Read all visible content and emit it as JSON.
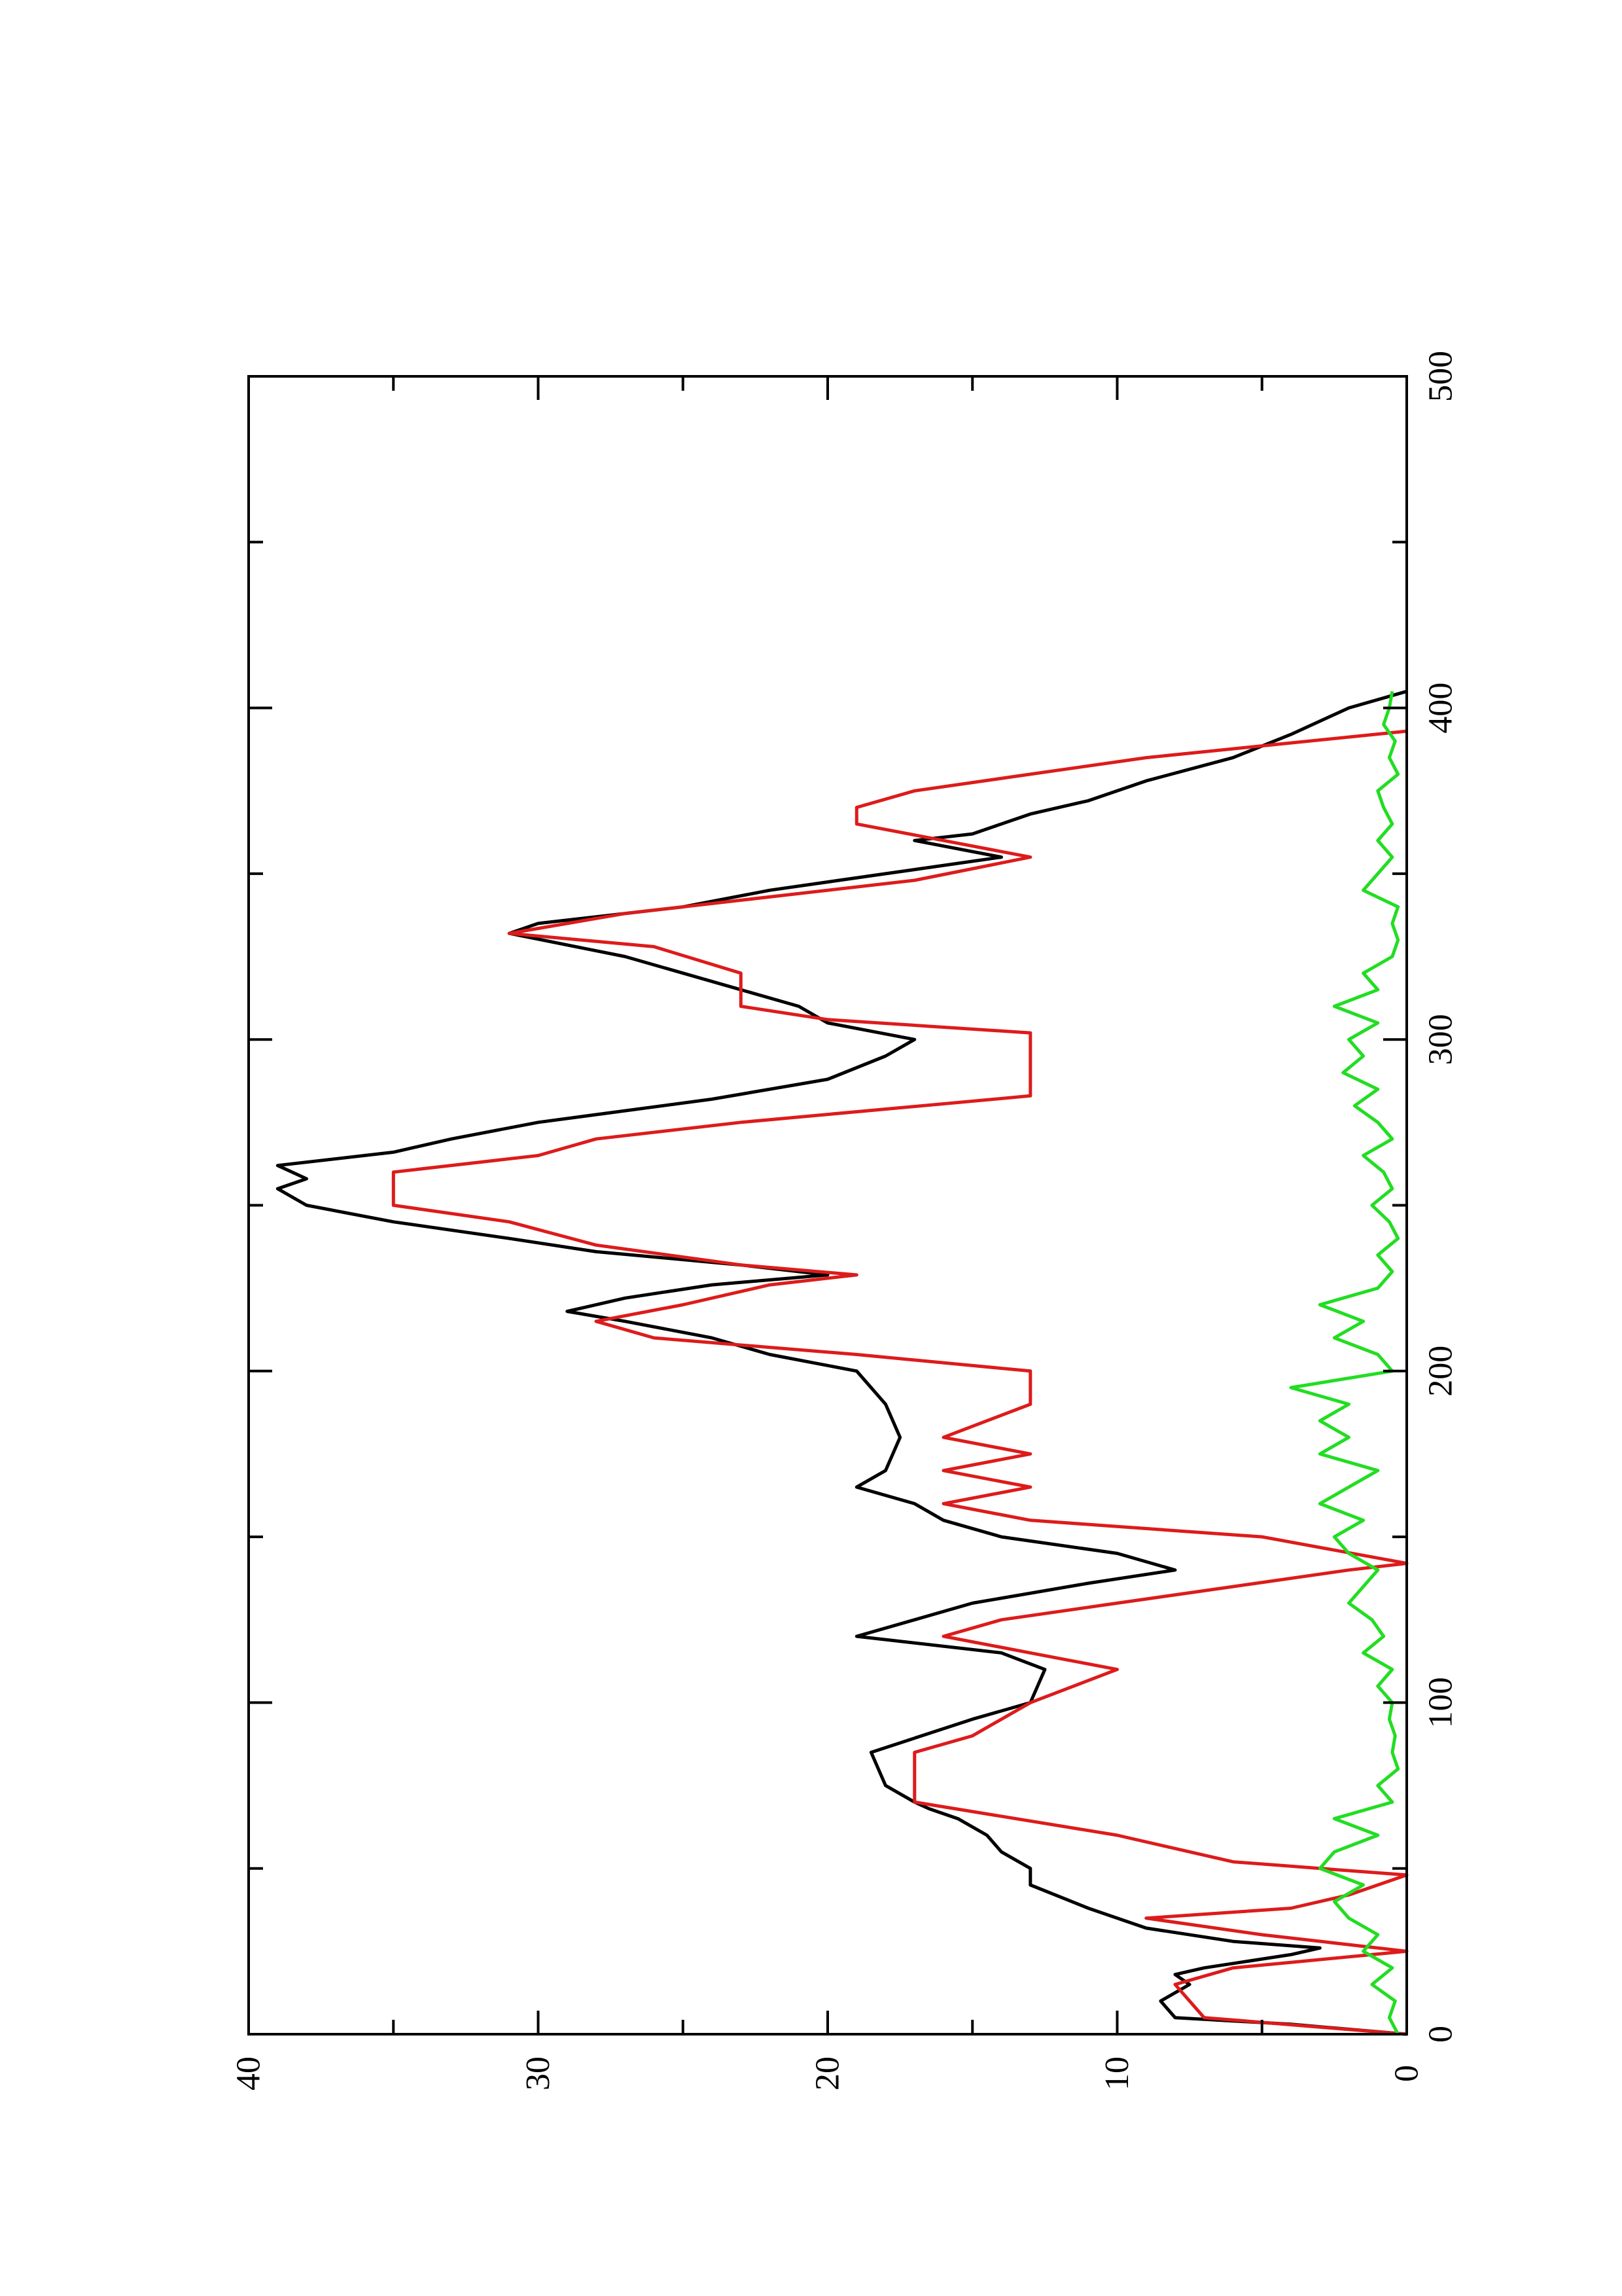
{
  "chart_data": {
    "type": "line",
    "orientation": "rotated-90-ccw",
    "title": "",
    "xlabel": "",
    "ylabel": "",
    "xlim": [
      0,
      500
    ],
    "ylim": [
      0,
      40
    ],
    "x_ticks": [
      "0",
      "100",
      "200",
      "300",
      "400",
      "500"
    ],
    "y_ticks": [
      "0",
      "10",
      "20",
      "30",
      "40"
    ],
    "grid": false,
    "legend": "none",
    "series": [
      {
        "color": "#000000",
        "points": [
          [
            0,
            0
          ],
          [
            3,
            4
          ],
          [
            5,
            8
          ],
          [
            10,
            8.5
          ],
          [
            15,
            7.5
          ],
          [
            18,
            8
          ],
          [
            20,
            7
          ],
          [
            24,
            4
          ],
          [
            26,
            3
          ],
          [
            28,
            6
          ],
          [
            32,
            9
          ],
          [
            38,
            11
          ],
          [
            45,
            13
          ],
          [
            50,
            13
          ],
          [
            55,
            14
          ],
          [
            60,
            14.5
          ],
          [
            65,
            15.5
          ],
          [
            68,
            16.5
          ],
          [
            70,
            17
          ],
          [
            75,
            18
          ],
          [
            85,
            18.5
          ],
          [
            95,
            15
          ],
          [
            100,
            13
          ],
          [
            110,
            12.5
          ],
          [
            115,
            14
          ],
          [
            120,
            19
          ],
          [
            125,
            17
          ],
          [
            130,
            15
          ],
          [
            136,
            11
          ],
          [
            140,
            8
          ],
          [
            145,
            10
          ],
          [
            150,
            14
          ],
          [
            155,
            16
          ],
          [
            160,
            17
          ],
          [
            165,
            19
          ],
          [
            170,
            18
          ],
          [
            180,
            17.5
          ],
          [
            190,
            18
          ],
          [
            200,
            19
          ],
          [
            205,
            22
          ],
          [
            210,
            24
          ],
          [
            215,
            27
          ],
          [
            218,
            29
          ],
          [
            222,
            27
          ],
          [
            226,
            24
          ],
          [
            229,
            20
          ],
          [
            232,
            23
          ],
          [
            236,
            28
          ],
          [
            240,
            31
          ],
          [
            245,
            35
          ],
          [
            250,
            38
          ],
          [
            255,
            39
          ],
          [
            258,
            38
          ],
          [
            262,
            39
          ],
          [
            266,
            35
          ],
          [
            270,
            33
          ],
          [
            275,
            30
          ],
          [
            282,
            24
          ],
          [
            288,
            20
          ],
          [
            295,
            18
          ],
          [
            300,
            17
          ],
          [
            305,
            20
          ],
          [
            310,
            21
          ],
          [
            315,
            23
          ],
          [
            325,
            27
          ],
          [
            332,
            31
          ],
          [
            335,
            30
          ],
          [
            340,
            25
          ],
          [
            345,
            22
          ],
          [
            350,
            18
          ],
          [
            355,
            14
          ],
          [
            360,
            17
          ],
          [
            362,
            15
          ],
          [
            368,
            13
          ],
          [
            372,
            11
          ],
          [
            378,
            9
          ],
          [
            385,
            6
          ],
          [
            392,
            4
          ],
          [
            400,
            2
          ],
          [
            405,
            0
          ]
        ]
      },
      {
        "color": "#dd1b1b",
        "points": [
          [
            0,
            0
          ],
          [
            5,
            7
          ],
          [
            15,
            8
          ],
          [
            20,
            6
          ],
          [
            25,
            0
          ],
          [
            30,
            5
          ],
          [
            35,
            9
          ],
          [
            38,
            4
          ],
          [
            42,
            2
          ],
          [
            48,
            0
          ],
          [
            52,
            6
          ],
          [
            60,
            10
          ],
          [
            70,
            17
          ],
          [
            85,
            17
          ],
          [
            90,
            15
          ],
          [
            100,
            13
          ],
          [
            110,
            10
          ],
          [
            115,
            13
          ],
          [
            120,
            16
          ],
          [
            125,
            14
          ],
          [
            130,
            10
          ],
          [
            135,
            6
          ],
          [
            140,
            2
          ],
          [
            142,
            0
          ],
          [
            150,
            5
          ],
          [
            155,
            13
          ],
          [
            160,
            16
          ],
          [
            165,
            13
          ],
          [
            170,
            16
          ],
          [
            175,
            13
          ],
          [
            180,
            16
          ],
          [
            190,
            13
          ],
          [
            200,
            13
          ],
          [
            205,
            19
          ],
          [
            210,
            26
          ],
          [
            215,
            28
          ],
          [
            220,
            25
          ],
          [
            226,
            22
          ],
          [
            229,
            19
          ],
          [
            232,
            23
          ],
          [
            238,
            28
          ],
          [
            245,
            31
          ],
          [
            250,
            35
          ],
          [
            260,
            35
          ],
          [
            265,
            30
          ],
          [
            270,
            28
          ],
          [
            275,
            23
          ],
          [
            283,
            13
          ],
          [
            302,
            13
          ],
          [
            306,
            20
          ],
          [
            310,
            23
          ],
          [
            320,
            23
          ],
          [
            328,
            26
          ],
          [
            332,
            31
          ],
          [
            338,
            27
          ],
          [
            342,
            23
          ],
          [
            348,
            17
          ],
          [
            355,
            13
          ],
          [
            360,
            16
          ],
          [
            365,
            19
          ],
          [
            370,
            19
          ],
          [
            375,
            17
          ],
          [
            380,
            13
          ],
          [
            385,
            9
          ],
          [
            393,
            0
          ]
        ]
      },
      {
        "color": "#22dd22",
        "points": [
          [
            0,
            0.3
          ],
          [
            5,
            0.6
          ],
          [
            10,
            0.4
          ],
          [
            15,
            1.2
          ],
          [
            20,
            0.5
          ],
          [
            25,
            1.5
          ],
          [
            30,
            1
          ],
          [
            35,
            2
          ],
          [
            40,
            2.5
          ],
          [
            45,
            1.5
          ],
          [
            50,
            3
          ],
          [
            55,
            2.5
          ],
          [
            60,
            1
          ],
          [
            65,
            2.5
          ],
          [
            70,
            0.5
          ],
          [
            75,
            1
          ],
          [
            80,
            0.3
          ],
          [
            85,
            0.5
          ],
          [
            90,
            0.4
          ],
          [
            95,
            0.6
          ],
          [
            100,
            0.5
          ],
          [
            105,
            1
          ],
          [
            110,
            0.5
          ],
          [
            115,
            1.5
          ],
          [
            120,
            0.8
          ],
          [
            125,
            1.2
          ],
          [
            130,
            2
          ],
          [
            135,
            1.5
          ],
          [
            140,
            1
          ],
          [
            145,
            2
          ],
          [
            150,
            2.5
          ],
          [
            155,
            1.5
          ],
          [
            160,
            3
          ],
          [
            165,
            2
          ],
          [
            170,
            1
          ],
          [
            175,
            3
          ],
          [
            180,
            2
          ],
          [
            185,
            3
          ],
          [
            190,
            2
          ],
          [
            195,
            4
          ],
          [
            200,
            0.5
          ],
          [
            205,
            1
          ],
          [
            210,
            2.5
          ],
          [
            215,
            1.5
          ],
          [
            220,
            3
          ],
          [
            225,
            1
          ],
          [
            230,
            0.5
          ],
          [
            235,
            1
          ],
          [
            240,
            0.3
          ],
          [
            245,
            0.6
          ],
          [
            250,
            1.2
          ],
          [
            255,
            0.5
          ],
          [
            260,
            0.8
          ],
          [
            265,
            1.5
          ],
          [
            270,
            0.5
          ],
          [
            275,
            1
          ],
          [
            280,
            1.8
          ],
          [
            285,
            1
          ],
          [
            290,
            2.2
          ],
          [
            295,
            1.5
          ],
          [
            300,
            2
          ],
          [
            305,
            1
          ],
          [
            310,
            2.5
          ],
          [
            315,
            1
          ],
          [
            320,
            1.5
          ],
          [
            325,
            0.5
          ],
          [
            330,
            0.3
          ],
          [
            335,
            0.5
          ],
          [
            340,
            0.3
          ],
          [
            345,
            1.5
          ],
          [
            350,
            1
          ],
          [
            355,
            0.5
          ],
          [
            360,
            1
          ],
          [
            365,
            0.5
          ],
          [
            370,
            0.8
          ],
          [
            375,
            1
          ],
          [
            380,
            0.3
          ],
          [
            385,
            0.6
          ],
          [
            390,
            0.4
          ],
          [
            395,
            0.8
          ],
          [
            400,
            0.6
          ],
          [
            405,
            0.5
          ]
        ]
      }
    ]
  }
}
